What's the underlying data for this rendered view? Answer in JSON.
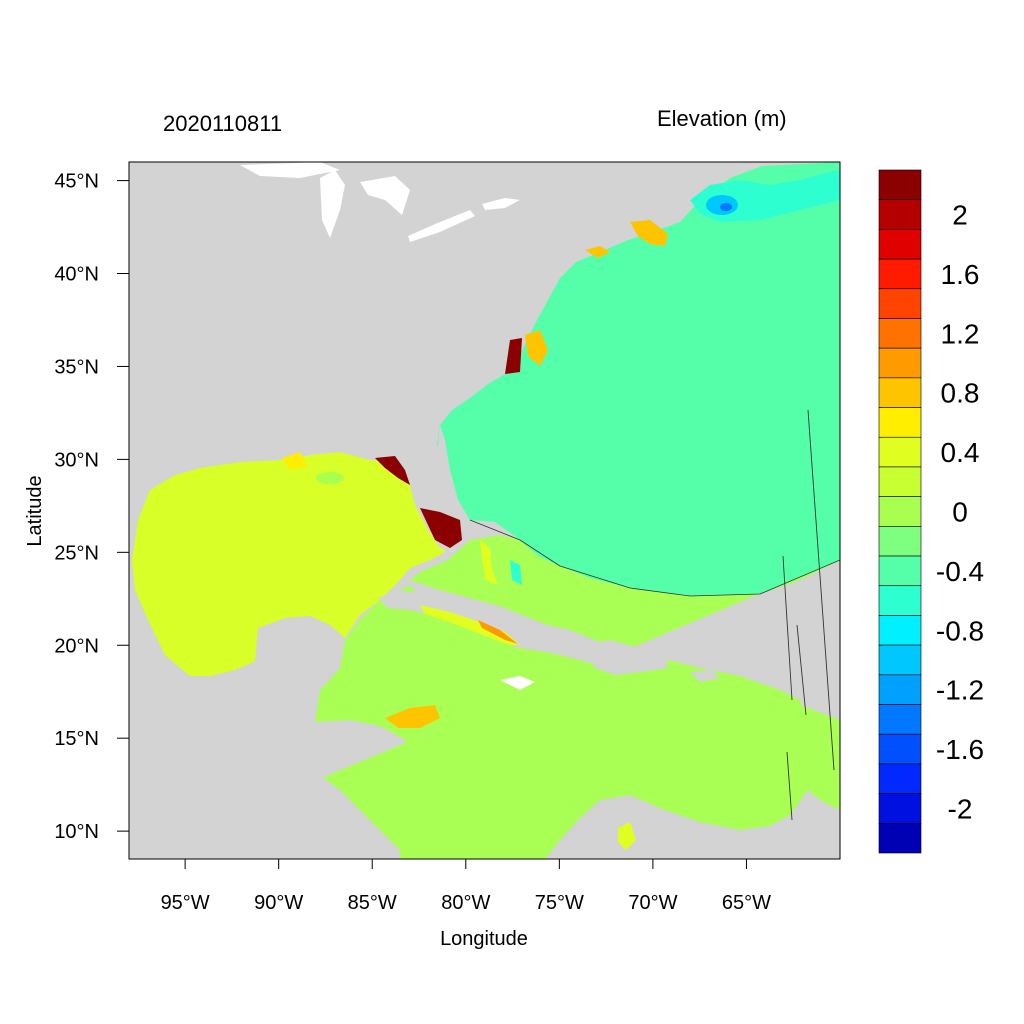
{
  "header": {
    "left_title": "2020110811",
    "right_title": "Elevation (m)"
  },
  "axes": {
    "xlabel": "Longitude",
    "ylabel": "Latitude",
    "x_ticks": [
      "95°W",
      "90°W",
      "85°W",
      "80°W",
      "75°W",
      "70°W",
      "65°W"
    ],
    "x_tick_lon": [
      -95,
      -90,
      -85,
      -80,
      -75,
      -70,
      -65
    ],
    "y_ticks": [
      "45°N",
      "40°N",
      "35°N",
      "30°N",
      "25°N",
      "20°N",
      "15°N",
      "10°N"
    ],
    "y_tick_lat": [
      45,
      40,
      35,
      30,
      25,
      20,
      15,
      10
    ],
    "xlim": [
      -98,
      -60
    ],
    "ylim": [
      8.5,
      46
    ]
  },
  "colorbar": {
    "labels": [
      "2",
      "1.6",
      "1.2",
      "0.8",
      "0.4",
      "0",
      "-0.4",
      "-0.8",
      "-1.2",
      "-1.6",
      "-2"
    ],
    "colors": [
      "#8b0000",
      "#b40000",
      "#e00000",
      "#ff1a00",
      "#ff4400",
      "#ff7200",
      "#ff9a00",
      "#ffc400",
      "#ffee00",
      "#e0ff20",
      "#c8ff30",
      "#a8ff50",
      "#7eff80",
      "#55ffaa",
      "#2effd0",
      "#00f0ff",
      "#00c8ff",
      "#00a0ff",
      "#0078ff",
      "#0050ff",
      "#0028ff",
      "#0010e0",
      "#0000b4"
    ]
  },
  "colors": {
    "land": "#d3d3d3",
    "gulf": "#d8ff28",
    "caribbean": "#aaff55",
    "atlantic": "#55ffaa",
    "surge_high": "#8b0000",
    "surge_low": "#0078ff"
  }
}
